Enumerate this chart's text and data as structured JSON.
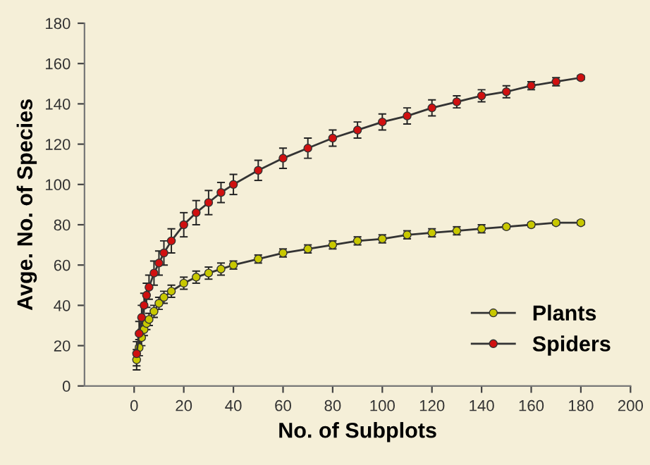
{
  "chart_data": {
    "type": "line",
    "xlabel": "No. of Subplots",
    "ylabel": "Avge. No. of Species",
    "x": [
      1,
      2,
      3,
      4,
      5,
      6,
      8,
      10,
      12,
      15,
      20,
      25,
      30,
      35,
      40,
      50,
      60,
      70,
      80,
      90,
      100,
      110,
      120,
      130,
      140,
      150,
      160,
      170,
      180
    ],
    "series": [
      {
        "name": "Plants",
        "color": "#c8c800",
        "values": [
          13,
          19,
          24,
          28,
          31,
          33,
          37,
          41,
          44,
          47,
          51,
          54,
          56,
          58,
          60,
          63,
          66,
          68,
          70,
          72,
          73,
          75,
          76,
          77,
          78,
          79,
          80,
          81,
          81
        ],
        "errors": [
          5,
          4,
          4,
          3,
          3,
          3,
          3,
          3,
          3,
          3,
          3,
          3,
          3,
          3,
          2,
          2,
          2,
          2,
          2,
          2,
          2,
          2,
          2,
          2,
          2,
          1,
          1,
          1,
          1
        ]
      },
      {
        "name": "Spiders",
        "color": "#d01010",
        "values": [
          16,
          26,
          34,
          40,
          45,
          49,
          56,
          61,
          66,
          72,
          80,
          86,
          91,
          96,
          100,
          107,
          113,
          118,
          123,
          127,
          131,
          134,
          138,
          141,
          144,
          146,
          149,
          151,
          153
        ],
        "errors": [
          6,
          6,
          6,
          6,
          6,
          6,
          6,
          6,
          6,
          6,
          6,
          6,
          6,
          5,
          5,
          5,
          5,
          5,
          4,
          4,
          4,
          4,
          4,
          3,
          3,
          3,
          2,
          2,
          1
        ]
      }
    ],
    "xlim": [
      -20,
      200
    ],
    "xticks": [
      0,
      20,
      40,
      60,
      80,
      100,
      120,
      140,
      160,
      180,
      200
    ],
    "ylim": [
      0,
      180
    ],
    "yticks": [
      0,
      20,
      40,
      60,
      80,
      100,
      120,
      140,
      160,
      180
    ],
    "grid": false,
    "legend": "bottom right",
    "marker": "circle",
    "line_style": "solid"
  }
}
